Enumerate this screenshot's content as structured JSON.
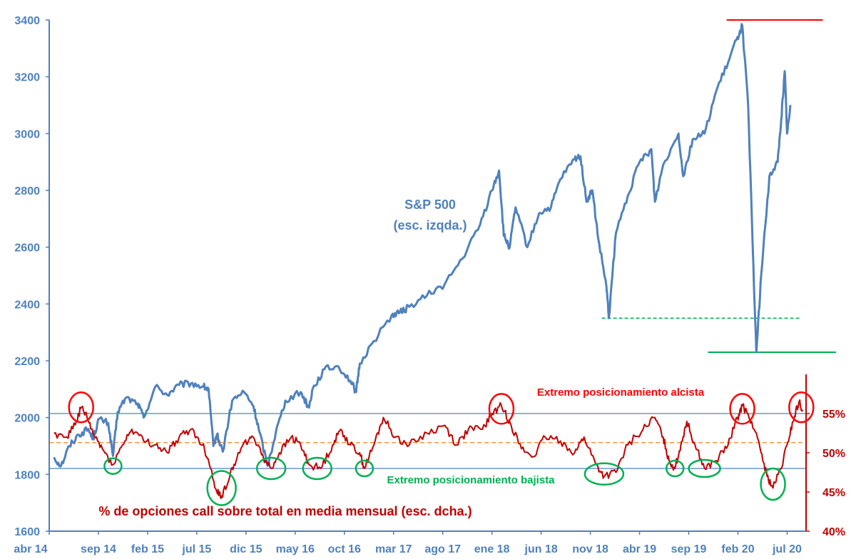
{
  "chart_data": {
    "type": "line",
    "title": "",
    "left_axis": {
      "label": "S&P 500 (esc. izqda.)",
      "range": [
        1600,
        3400
      ],
      "ticks": [
        "1600",
        "1800",
        "2000",
        "2200",
        "2400",
        "2600",
        "2800",
        "3000",
        "3200",
        "3400"
      ],
      "color": "#4f81bd"
    },
    "right_axis": {
      "label": "% de opciones call sobre total en media mensual (esc. dcha.)",
      "range": [
        40,
        60
      ],
      "ticks": [
        "40%",
        "45%",
        "50%",
        "55%"
      ],
      "color": "#c00000"
    },
    "x_axis": {
      "start": "2014-04",
      "end": "2020-07",
      "ticks": [
        "abr 14",
        "sep 14",
        "feb 15",
        "jul 15",
        "dic 15",
        "may 16",
        "oct 16",
        "mar 17",
        "ago 17",
        "ene 18",
        "jun 18",
        "nov 18",
        "abr 19",
        "sep 19",
        "feb 20",
        "jul 20"
      ]
    },
    "series": [
      {
        "name": "S&P 500",
        "axis": "left",
        "color": "#4f81bd",
        "points": [
          [
            2014.29,
            1860
          ],
          [
            2014.35,
            1830
          ],
          [
            2014.42,
            1900
          ],
          [
            2014.5,
            1940
          ],
          [
            2014.58,
            1960
          ],
          [
            2014.62,
            1925
          ],
          [
            2014.67,
            1995
          ],
          [
            2014.75,
            1980
          ],
          [
            2014.79,
            1865
          ],
          [
            2014.83,
            2020
          ],
          [
            2014.9,
            2070
          ],
          [
            2015.0,
            2050
          ],
          [
            2015.05,
            2000
          ],
          [
            2015.15,
            2110
          ],
          [
            2015.25,
            2080
          ],
          [
            2015.35,
            2115
          ],
          [
            2015.45,
            2120
          ],
          [
            2015.55,
            2110
          ],
          [
            2015.6,
            2100
          ],
          [
            2015.64,
            1900
          ],
          [
            2015.67,
            1940
          ],
          [
            2015.72,
            1880
          ],
          [
            2015.8,
            2060
          ],
          [
            2015.9,
            2090
          ],
          [
            2015.98,
            2040
          ],
          [
            2016.03,
            1950
          ],
          [
            2016.1,
            1830
          ],
          [
            2016.17,
            1950
          ],
          [
            2016.25,
            2060
          ],
          [
            2016.38,
            2090
          ],
          [
            2016.45,
            2035
          ],
          [
            2016.48,
            2100
          ],
          [
            2016.58,
            2170
          ],
          [
            2016.7,
            2180
          ],
          [
            2016.8,
            2130
          ],
          [
            2016.85,
            2090
          ],
          [
            2016.88,
            2190
          ],
          [
            2017.0,
            2270
          ],
          [
            2017.15,
            2360
          ],
          [
            2017.22,
            2370
          ],
          [
            2017.3,
            2390
          ],
          [
            2017.45,
            2430
          ],
          [
            2017.6,
            2470
          ],
          [
            2017.75,
            2560
          ],
          [
            2017.9,
            2680
          ],
          [
            2018.0,
            2800
          ],
          [
            2018.06,
            2870
          ],
          [
            2018.1,
            2640
          ],
          [
            2018.15,
            2600
          ],
          [
            2018.2,
            2740
          ],
          [
            2018.3,
            2600
          ],
          [
            2018.4,
            2720
          ],
          [
            2018.5,
            2740
          ],
          [
            2018.58,
            2840
          ],
          [
            2018.7,
            2910
          ],
          [
            2018.75,
            2920
          ],
          [
            2018.8,
            2760
          ],
          [
            2018.85,
            2800
          ],
          [
            2018.9,
            2630
          ],
          [
            2018.97,
            2460
          ],
          [
            2018.99,
            2350
          ],
          [
            2019.05,
            2650
          ],
          [
            2019.15,
            2780
          ],
          [
            2019.25,
            2900
          ],
          [
            2019.35,
            2945
          ],
          [
            2019.38,
            2760
          ],
          [
            2019.45,
            2890
          ],
          [
            2019.58,
            3000
          ],
          [
            2019.62,
            2850
          ],
          [
            2019.7,
            2980
          ],
          [
            2019.8,
            3000
          ],
          [
            2019.9,
            3150
          ],
          [
            2020.0,
            3250
          ],
          [
            2020.08,
            3340
          ],
          [
            2020.12,
            3380
          ],
          [
            2020.17,
            3100
          ],
          [
            2020.22,
            2450
          ],
          [
            2020.24,
            2230
          ],
          [
            2020.28,
            2500
          ],
          [
            2020.35,
            2850
          ],
          [
            2020.42,
            2900
          ],
          [
            2020.45,
            3050
          ],
          [
            2020.48,
            3220
          ],
          [
            2020.5,
            3000
          ],
          [
            2020.53,
            3100
          ]
        ]
      },
      {
        "name": "% opciones call",
        "axis": "right",
        "color": "#c00000",
        "points": [
          [
            2014.29,
            52.5
          ],
          [
            2014.4,
            52
          ],
          [
            2014.48,
            54
          ],
          [
            2014.52,
            55.8
          ],
          [
            2014.57,
            54.5
          ],
          [
            2014.62,
            52.5
          ],
          [
            2014.7,
            50.5
          ],
          [
            2014.79,
            48.5
          ],
          [
            2014.87,
            51
          ],
          [
            2014.95,
            53
          ],
          [
            2015.05,
            51.5
          ],
          [
            2015.15,
            51
          ],
          [
            2015.25,
            50
          ],
          [
            2015.35,
            52
          ],
          [
            2015.45,
            53
          ],
          [
            2015.55,
            51
          ],
          [
            2015.6,
            49
          ],
          [
            2015.67,
            45
          ],
          [
            2015.71,
            44.5
          ],
          [
            2015.78,
            47
          ],
          [
            2015.85,
            50
          ],
          [
            2015.95,
            52
          ],
          [
            2016.02,
            51
          ],
          [
            2016.08,
            49
          ],
          [
            2016.13,
            48
          ],
          [
            2016.2,
            50
          ],
          [
            2016.3,
            52
          ],
          [
            2016.38,
            51
          ],
          [
            2016.45,
            48.5
          ],
          [
            2016.55,
            48
          ],
          [
            2016.65,
            51
          ],
          [
            2016.72,
            53
          ],
          [
            2016.8,
            51
          ],
          [
            2016.88,
            50
          ],
          [
            2016.92,
            48
          ],
          [
            2017.0,
            51
          ],
          [
            2017.08,
            54.5
          ],
          [
            2017.18,
            52
          ],
          [
            2017.3,
            51
          ],
          [
            2017.45,
            52.5
          ],
          [
            2017.6,
            53.5
          ],
          [
            2017.7,
            51
          ],
          [
            2017.8,
            53
          ],
          [
            2017.92,
            53
          ],
          [
            2018.0,
            55
          ],
          [
            2018.08,
            56
          ],
          [
            2018.15,
            54
          ],
          [
            2018.25,
            50.5
          ],
          [
            2018.35,
            49.5
          ],
          [
            2018.45,
            52
          ],
          [
            2018.58,
            51.5
          ],
          [
            2018.7,
            50
          ],
          [
            2018.78,
            52
          ],
          [
            2018.88,
            48.5
          ],
          [
            2018.95,
            47
          ],
          [
            2019.05,
            47.5
          ],
          [
            2019.15,
            51
          ],
          [
            2019.28,
            53
          ],
          [
            2019.38,
            54.5
          ],
          [
            2019.45,
            52
          ],
          [
            2019.5,
            49
          ],
          [
            2019.55,
            48
          ],
          [
            2019.6,
            51
          ],
          [
            2019.65,
            54
          ],
          [
            2019.72,
            51
          ],
          [
            2019.8,
            48
          ],
          [
            2019.9,
            49
          ],
          [
            2020.0,
            51
          ],
          [
            2020.08,
            54.5
          ],
          [
            2020.12,
            56
          ],
          [
            2020.2,
            54
          ],
          [
            2020.28,
            50
          ],
          [
            2020.33,
            47
          ],
          [
            2020.38,
            45.5
          ],
          [
            2020.45,
            48
          ],
          [
            2020.5,
            51
          ],
          [
            2020.55,
            54
          ],
          [
            2020.6,
            56.5
          ],
          [
            2020.63,
            55.5
          ]
        ]
      }
    ],
    "reference_lines": [
      {
        "axis": "right",
        "value": 55,
        "label": "Extremo posicionamiento alcista"
      },
      {
        "axis": "right",
        "value": 48,
        "label": "Extremo posicionamiento bajista"
      },
      {
        "axis": "right",
        "value": 51.3,
        "style": "dashed",
        "color": "#f79646"
      },
      {
        "axis": "left",
        "value": 3400,
        "color": "#ff0000"
      },
      {
        "axis": "left",
        "value": 2350,
        "style": "dashed",
        "color": "#00b050"
      },
      {
        "axis": "left",
        "value": 2230,
        "color": "#00b050"
      }
    ],
    "highlight_circles": {
      "red": [
        [
          2014.52,
          55.8
        ],
        [
          2018.08,
          55.6
        ],
        [
          2020.12,
          55.6
        ],
        [
          2020.62,
          55.8
        ]
      ],
      "green": [
        [
          2014.79,
          48.3
        ],
        [
          2015.71,
          45.5
        ],
        [
          2016.13,
          48
        ],
        [
          2016.52,
          48
        ],
        [
          2016.92,
          48
        ],
        [
          2018.95,
          47.3
        ],
        [
          2019.55,
          48
        ],
        [
          2019.8,
          48
        ],
        [
          2020.38,
          46
        ]
      ]
    },
    "annotations": {
      "sp_label_line1": "S&P 500",
      "sp_label_line2": "(esc. izqda.)",
      "bullish_label": "Extremo posicionamiento alcista",
      "bearish_label": "Extremo posicionamiento bajista",
      "calls_label": "% de opciones call sobre total en media mensual (esc. dcha.)"
    }
  }
}
